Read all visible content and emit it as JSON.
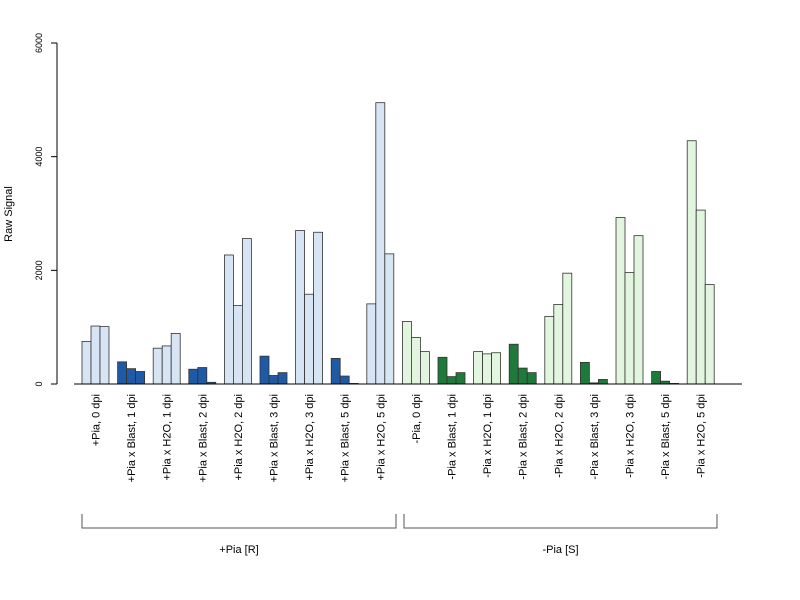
{
  "chart_data": {
    "type": "bar",
    "title": "",
    "xlabel": "",
    "ylabel": "Raw Signal",
    "ylim": [
      0,
      6000
    ],
    "yticks": [
      0,
      2000,
      4000,
      6000
    ],
    "grid": false,
    "legend": "none",
    "categories": [
      "+Pia, 0 dpi",
      "+Pia x Blast, 1 dpi",
      "+Pia x H2O, 1 dpi",
      "+Pia x Blast, 2 dpi",
      "+Pia x H2O, 2 dpi",
      "+Pia x Blast, 3 dpi",
      "+Pia x H2O, 3 dpi",
      "+Pia x Blast, 5 dpi",
      "+Pia x H2O, 5 dpi",
      "-Pia, 0 dpi",
      "-Pia x Blast, 1 dpi",
      "-Pia x H2O, 1 dpi",
      "-Pia x Blast, 2 dpi",
      "-Pia x H2O, 2 dpi",
      "-Pia x Blast, 3 dpi",
      "-Pia x H2O, 3 dpi",
      "-Pia x Blast, 5 dpi",
      "-Pia x H2O, 5 dpi"
    ],
    "values": [
      [
        750,
        1020,
        1010
      ],
      [
        390,
        270,
        220
      ],
      [
        630,
        670,
        890
      ],
      [
        260,
        290,
        30
      ],
      [
        2270,
        1380,
        2560
      ],
      [
        490,
        150,
        200
      ],
      [
        2700,
        1580,
        2670
      ],
      [
        450,
        140,
        10
      ],
      [
        1410,
        4950,
        2290
      ],
      [
        1100,
        820,
        570
      ],
      [
        470,
        130,
        200
      ],
      [
        570,
        530,
        550
      ],
      [
        700,
        280,
        200
      ],
      [
        1190,
        1400,
        1950
      ],
      [
        380,
        20,
        80
      ],
      [
        2930,
        1960,
        2610
      ],
      [
        220,
        50,
        10
      ],
      [
        4280,
        3060,
        1750
      ]
    ],
    "bar_colors": [
      "#d6e4f4",
      "#1f5aa6",
      "#d6e4f4",
      "#1f5aa6",
      "#d6e4f4",
      "#1f5aa6",
      "#d6e4f4",
      "#1f5aa6",
      "#d6e4f4",
      "#e2f5de",
      "#1e7a3a",
      "#e2f5de",
      "#1e7a3a",
      "#e2f5de",
      "#1e7a3a",
      "#e2f5de",
      "#1e7a3a",
      "#e2f5de"
    ],
    "groups": [
      {
        "label": "+Pia [R]",
        "first": 0,
        "last": 8
      },
      {
        "label": "-Pia [S]",
        "first": 9,
        "last": 17
      }
    ]
  }
}
